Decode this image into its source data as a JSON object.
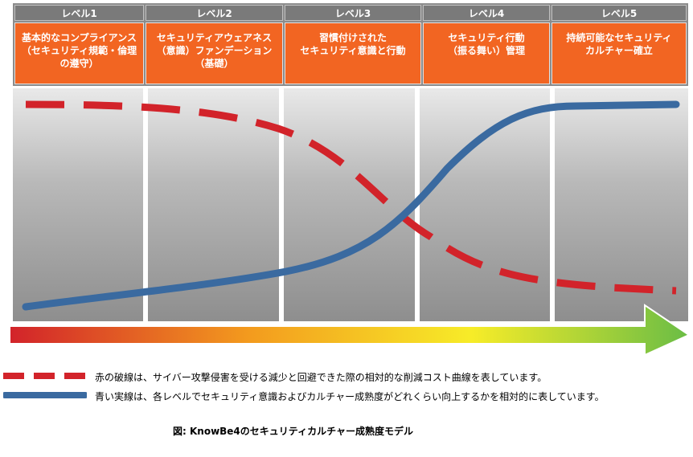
{
  "levels": [
    {
      "title": "レベル1",
      "desc": "基本的なコンプライアンス\n（セキュリティ規範・倫理\nの遵守）"
    },
    {
      "title": "レベル2",
      "desc": "セキュリティアウェアネス\n（意識）ファンデーション\n（基礎）"
    },
    {
      "title": "レベル3",
      "desc": "習慣付けされた\nセキュリティ意識と行動"
    },
    {
      "title": "レベル4",
      "desc": "セキュリティ行動\n（振る舞い）管理"
    },
    {
      "title": "レベル5",
      "desc": "持続可能なセキュリティ\nカルチャー確立"
    }
  ],
  "legend": {
    "red": "赤の破線は、サイバー攻撃侵害を受ける減少と回避できた際の相対的な削減コスト曲線を表しています。",
    "blue": "青い実線は、各レベルでセキュリティ意識およびカルチャー成熟度がどれくらい向上するかを相対的に表しています。"
  },
  "caption": "図:  KnowBe4のセキュリティカルチャー成熟度モデル",
  "colors": {
    "orange": "#f26522",
    "red_curve": "#d2232a",
    "blue_curve": "#3a6aa0",
    "arrow_start": "#d2232a",
    "arrow_mid": "#f7ec28",
    "arrow_end": "#6abd45"
  }
}
